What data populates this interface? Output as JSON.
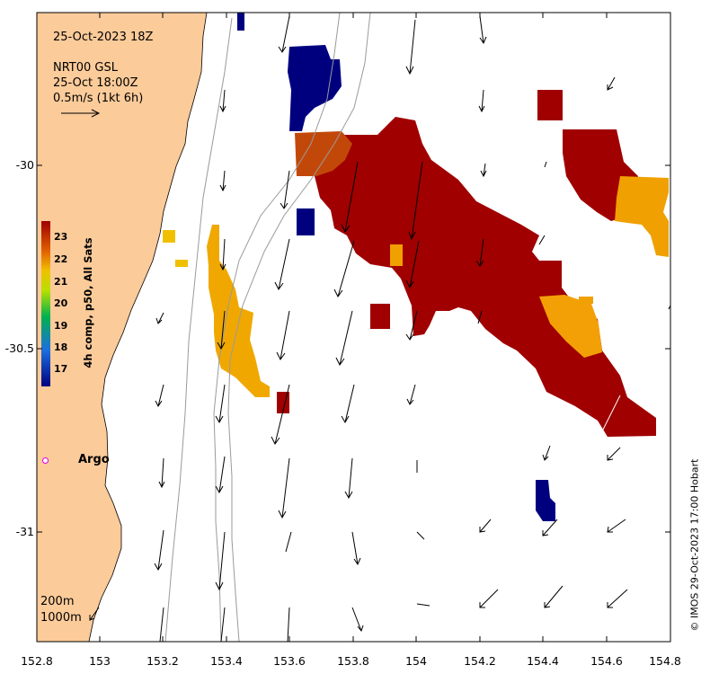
{
  "map": {
    "date_title": "25-Oct-2023 18Z",
    "current_source": "NRT00 GSL",
    "current_time": "25-Oct 18:00Z",
    "scale_label": "0.5m/s (1kt 6h)",
    "contour_200": "200m",
    "contour_1000": "1000m",
    "argo_label": "Argo",
    "credit": "© IMOS 29-Oct-2023 17:00 Hobart",
    "lat_ticks": [
      "-30",
      "-30.5",
      "-31"
    ],
    "lon_ticks": [
      "152.8",
      "153",
      "153.2",
      "153.4",
      "153.6",
      "153.8",
      "154",
      "154.2",
      "154.4",
      "154.6",
      "154.8"
    ],
    "lat_range": [
      -31.3,
      -29.6
    ],
    "lon_range": [
      152.8,
      154.8
    ]
  },
  "colorbar": {
    "title": "4h comp, p50, All Sats",
    "ticks": [
      "23",
      "22",
      "21",
      "20",
      "19",
      "18",
      "17"
    ],
    "range": [
      16.5,
      23.5
    ]
  },
  "colors": {
    "land": "#fbcb9a",
    "warm_core": "#a00000",
    "cold_patch": "#00007f",
    "contour": "#9a9a9a",
    "argo_marker": "#e000e0"
  }
}
